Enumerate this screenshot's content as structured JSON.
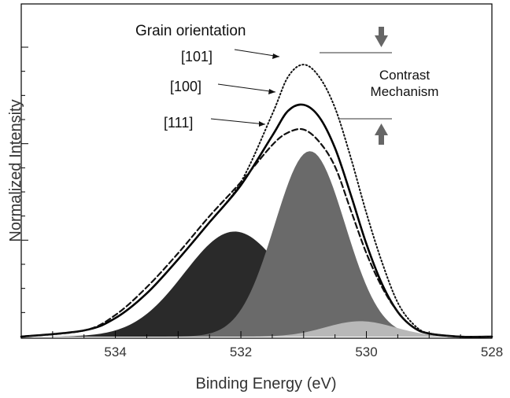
{
  "chart_data": {
    "type": "line",
    "title": "",
    "xlabel": "Binding Energy (eV)",
    "ylabel": "Normalized Intensity",
    "xlim": [
      535.5,
      528
    ],
    "x_reversed": true,
    "ylim": [
      0,
      1
    ],
    "grid": false,
    "x_ticks": [
      534,
      532,
      530,
      528
    ],
    "x_tick_labels": [
      "534",
      "532",
      "530",
      "528"
    ],
    "legend_title": "Grain orientation",
    "series": [
      {
        "name": "[101]",
        "style": "dotted",
        "color": "#111111",
        "x": [
          535.5,
          534.5,
          534.0,
          533.5,
          533.0,
          532.5,
          532.0,
          531.5,
          531.25,
          531.0,
          530.75,
          530.5,
          530.25,
          530.0,
          529.75,
          529.5,
          529.25,
          529.0,
          528.5,
          528.0
        ],
        "y": [
          0.0,
          0.02,
          0.06,
          0.14,
          0.25,
          0.37,
          0.5,
          0.72,
          0.84,
          0.88,
          0.84,
          0.74,
          0.58,
          0.4,
          0.24,
          0.11,
          0.04,
          0.01,
          0.0,
          0.0
        ]
      },
      {
        "name": "[100]",
        "style": "solid",
        "color": "#000000",
        "x": [
          535.5,
          534.5,
          534.0,
          533.5,
          533.0,
          532.5,
          532.0,
          531.5,
          531.25,
          531.0,
          530.75,
          530.5,
          530.25,
          530.0,
          529.75,
          529.5,
          529.25,
          529.0,
          528.5,
          528.0
        ],
        "y": [
          0.0,
          0.02,
          0.06,
          0.14,
          0.25,
          0.37,
          0.49,
          0.65,
          0.73,
          0.75,
          0.71,
          0.61,
          0.46,
          0.3,
          0.17,
          0.08,
          0.03,
          0.01,
          0.0,
          0.0
        ]
      },
      {
        "name": "[111]",
        "style": "dashed",
        "color": "#111111",
        "x": [
          535.5,
          534.5,
          534.0,
          533.5,
          533.0,
          532.5,
          532.0,
          531.5,
          531.25,
          531.0,
          530.75,
          530.5,
          530.25,
          530.0,
          529.75,
          529.5,
          529.25,
          529.0,
          528.5,
          528.0
        ],
        "y": [
          0.0,
          0.02,
          0.07,
          0.16,
          0.27,
          0.39,
          0.5,
          0.62,
          0.66,
          0.67,
          0.63,
          0.55,
          0.41,
          0.27,
          0.16,
          0.08,
          0.03,
          0.01,
          0.0,
          0.0
        ]
      }
    ],
    "fill_components": [
      {
        "name": "component-532.1",
        "center": 532.1,
        "height": 0.34,
        "sigma": 0.8,
        "color": "#2a2a2a"
      },
      {
        "name": "component-530.9",
        "center": 530.9,
        "height": 0.6,
        "sigma": 0.56,
        "color": "#6a6a6a"
      },
      {
        "name": "component-530.1",
        "center": 530.1,
        "height": 0.05,
        "sigma": 0.55,
        "color": "#b8b8b8"
      }
    ],
    "annotations": {
      "legend_title": "Grain orientation",
      "contrast_line1": "Contrast",
      "contrast_line2": "Mechanism"
    }
  }
}
